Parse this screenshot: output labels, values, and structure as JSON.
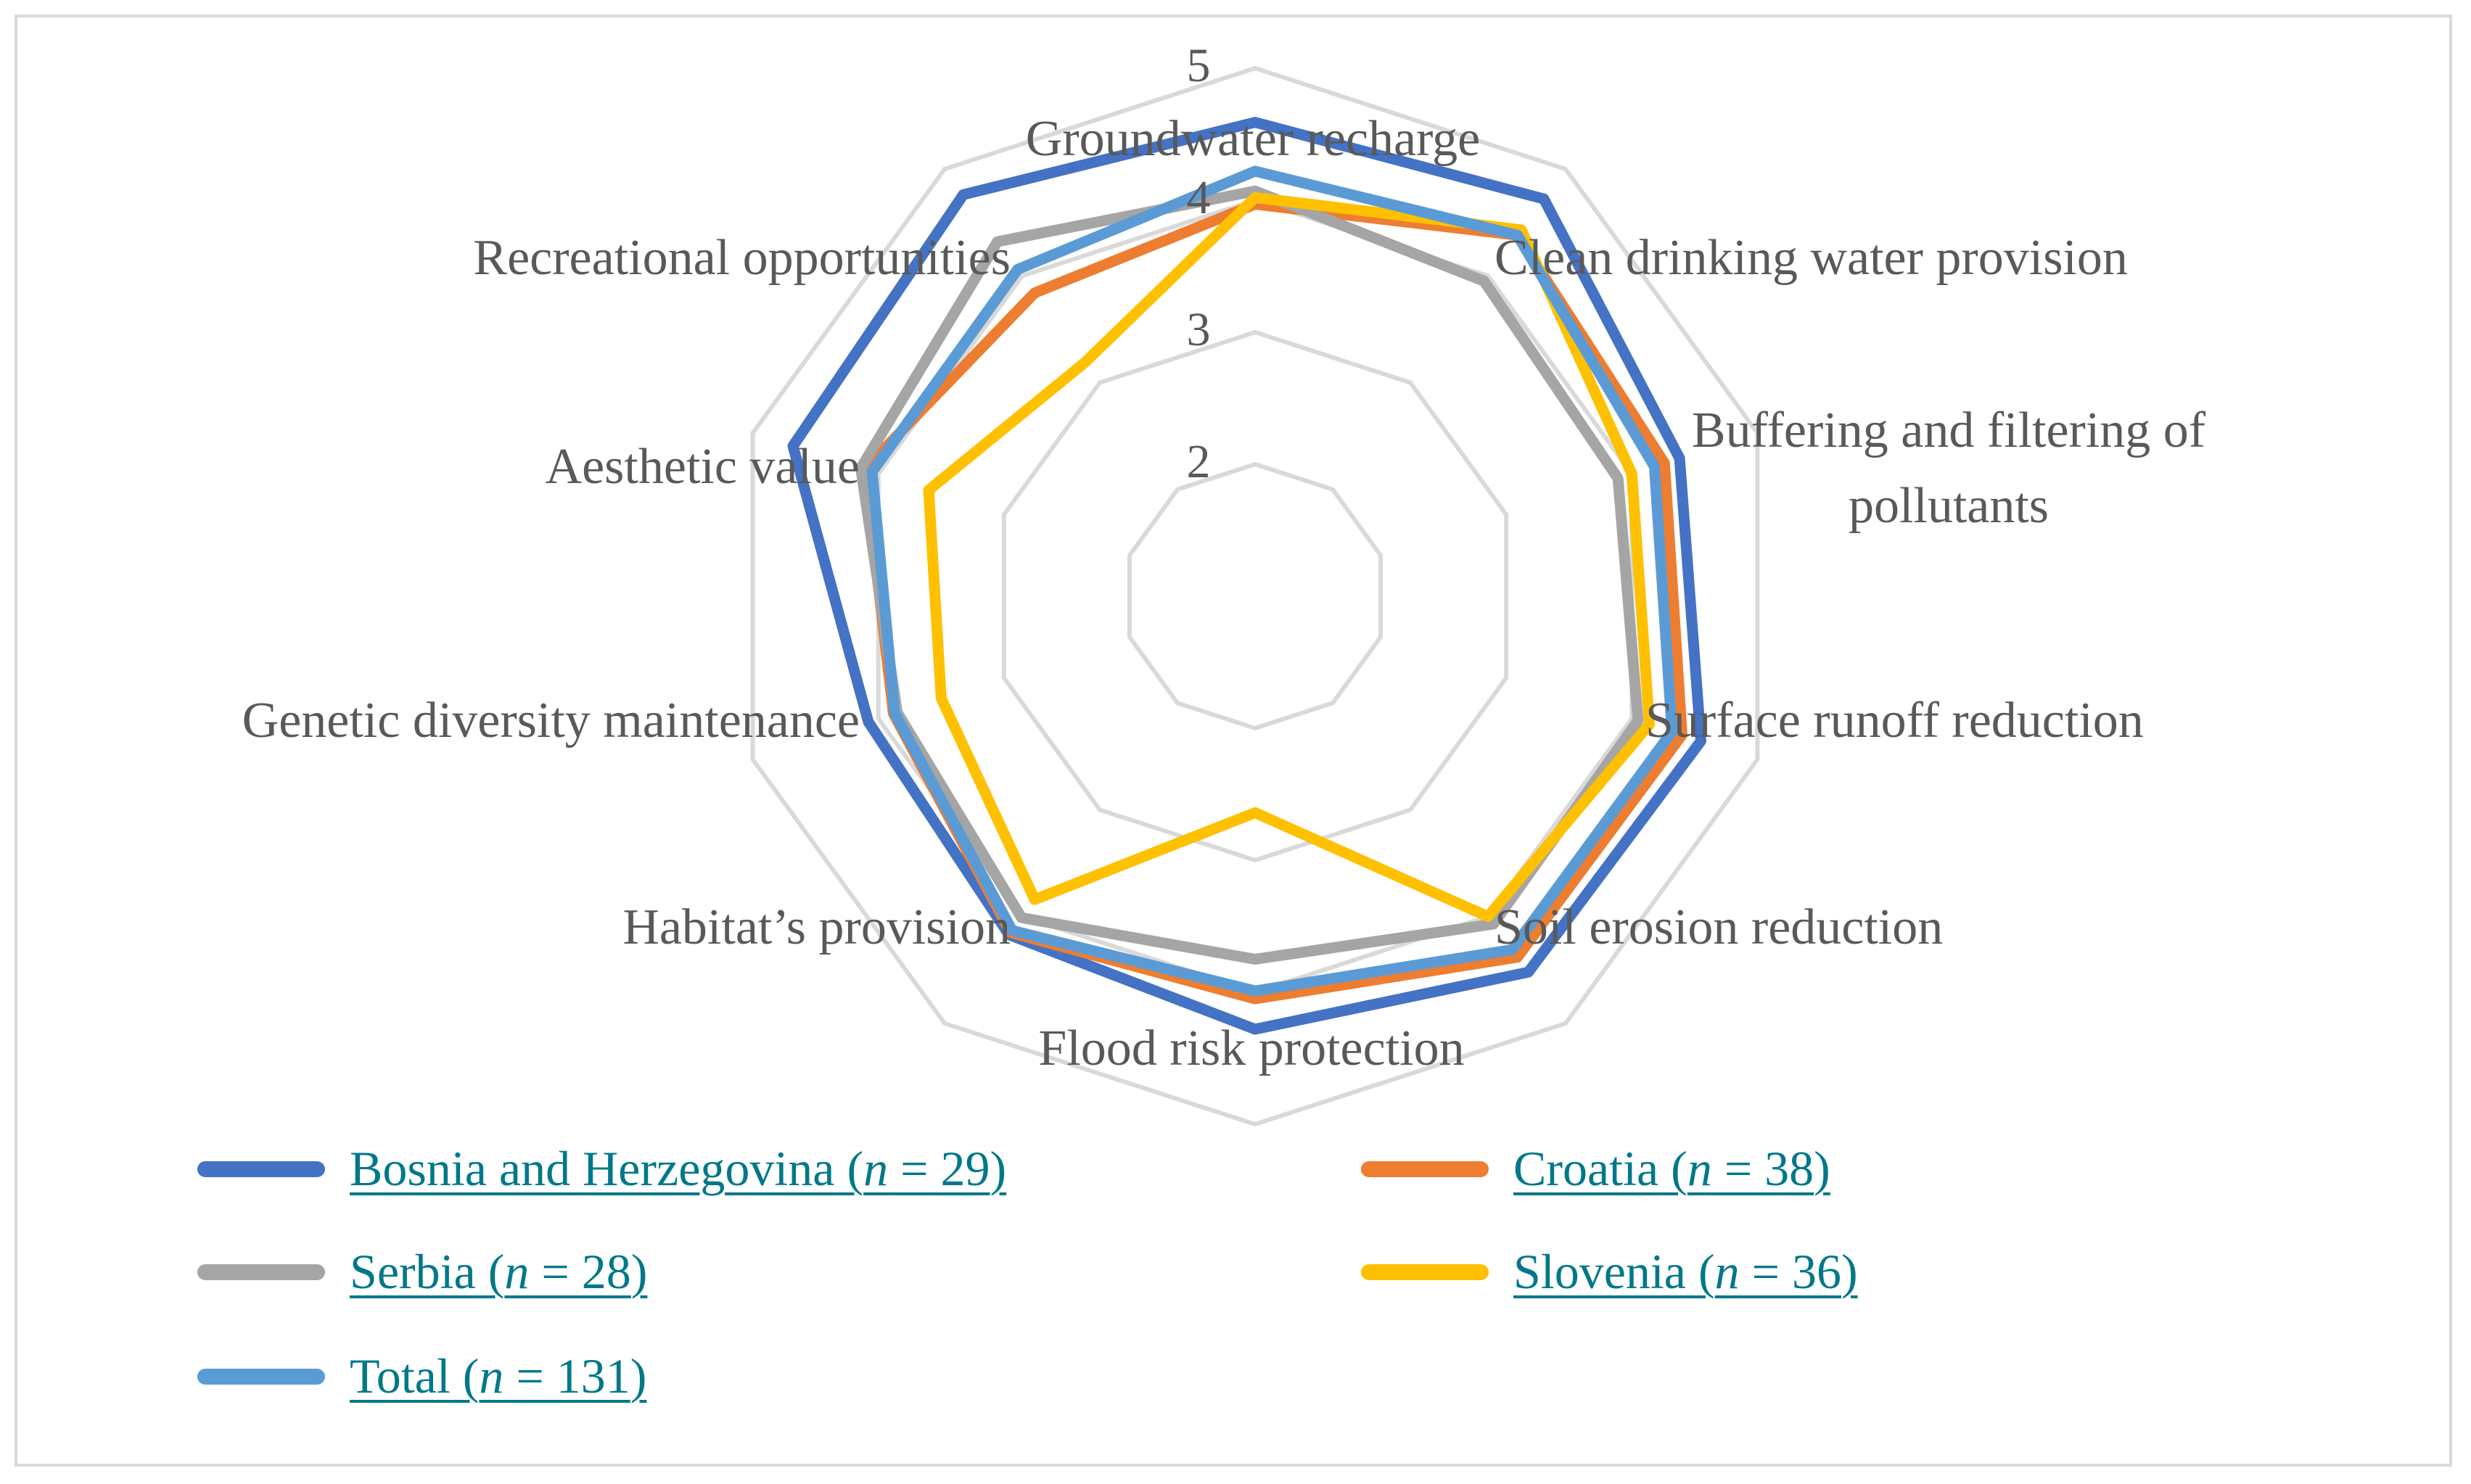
{
  "chart_data": {
    "type": "radar",
    "title": "",
    "axes": [
      "Groundwater recharge",
      "Clean drinking water provision",
      "Buffering and filtering of pollutants",
      "Surface runoff reduction",
      "Soil erosion reduction",
      "Flood risk protection",
      "Habitat’s provision",
      "Genetic diversity maintenance",
      "Aesthetic value",
      "Recreational opportunities"
    ],
    "axis_label_lines": [
      [
        "Groundwater recharge"
      ],
      [
        "Clean drinking water provision"
      ],
      [
        "Buffering and filtering of",
        "pollutants"
      ],
      [
        "Surface runoff reduction"
      ],
      [
        "Soil erosion reduction"
      ],
      [
        "Flood risk protection"
      ],
      [
        "Habitat’s provision"
      ],
      [
        "Genetic diversity maintenance"
      ],
      [
        "Aesthetic value"
      ],
      [
        "Recreational opportunities"
      ]
    ],
    "rlim": [
      1,
      5
    ],
    "gridlines": [
      2,
      3,
      4,
      5
    ],
    "tick_labels": [
      "2",
      "3",
      "4",
      "5"
    ],
    "series": [
      {
        "name": "Bosnia and Herzegovina",
        "n": "29",
        "color": "#4472c4",
        "values": [
          4.59,
          4.72,
          4.38,
          4.55,
          4.52,
          4.28,
          4.17,
          4.08,
          4.68,
          4.76
        ]
      },
      {
        "name": "Croatia",
        "n": "38",
        "color": "#ed7d31",
        "values": [
          3.97,
          4.38,
          4.26,
          4.4,
          4.38,
          4.05,
          4.15,
          3.88,
          4.11,
          3.84
        ]
      },
      {
        "name": "Serbia",
        "n": "28",
        "color": "#a5a5a5",
        "values": [
          4.07,
          3.95,
          3.89,
          4.05,
          4.07,
          3.75,
          4.01,
          3.85,
          4.14,
          4.32
        ]
      },
      {
        "name": "Slovenia",
        "n": "36",
        "color": "#ffc000",
        "values": [
          4.02,
          4.43,
          4.0,
          4.14,
          4.0,
          2.64,
          3.84,
          3.5,
          3.6,
          3.19
        ]
      },
      {
        "name": "Total",
        "n": "131",
        "color": "#5b9bd5",
        "values": [
          4.22,
          4.38,
          4.18,
          4.32,
          4.31,
          3.99,
          4.13,
          3.87,
          4.05,
          4.06
        ]
      }
    ]
  },
  "legend": {
    "n_symbol": "n",
    "entries": [
      {
        "name": "Bosnia and Herzegovina",
        "n_text": " = 29",
        "color": "#4472c4"
      },
      {
        "name": "Croatia",
        "n_text": " = 38",
        "color": "#ed7d31"
      },
      {
        "name": "Serbia",
        "n_text": " = 28",
        "color": "#a5a5a5"
      },
      {
        "name": "Slovenia",
        "n_text": " = 36",
        "color": "#ffc000"
      },
      {
        "name": "Total",
        "n_text": " = 131",
        "color": "#5b9bd5"
      }
    ]
  }
}
